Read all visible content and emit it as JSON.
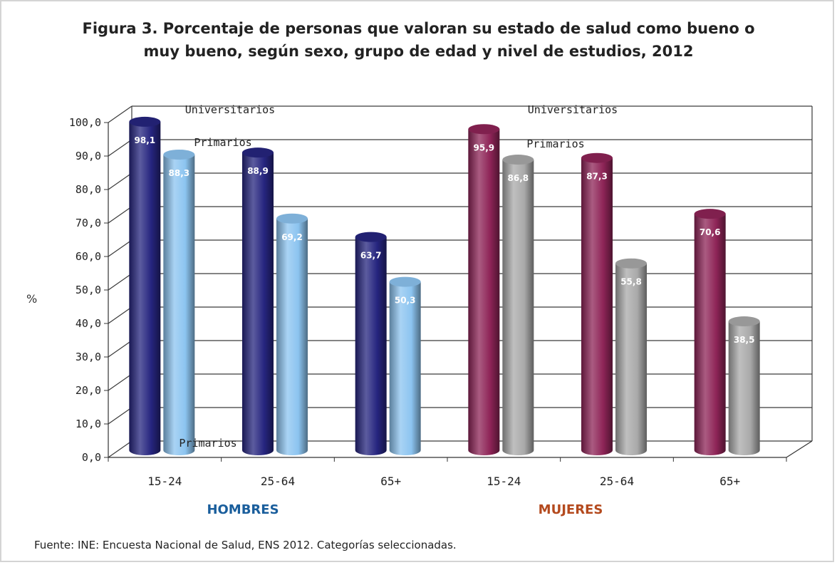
{
  "title_line1": "Figura 3. Porcentaje de personas que valoran su estado de salud como bueno o",
  "title_line2": "muy bueno, según sexo, grupo de edad y nivel de estudios, 2012",
  "ylabel": "%",
  "group_labels": [
    "HOMBRES",
    "MUJERES"
  ],
  "source": "Fuente:  INE: Encuesta Nacional de Salud, ENS 2012. Categorías seleccionadas.",
  "annotations": {
    "universitarios": "Universitarios",
    "primarios": "Primarios"
  },
  "colors": {
    "hombres_universitarios": "#26257f",
    "hombres_primarios": "#8cc4f0",
    "mujeres_universitarios": "#8e2457",
    "mujeres_primarios": "#a9a9a9",
    "grid": "#3a3a3a"
  },
  "chart_data": {
    "type": "bar",
    "title": "Figura 3. Porcentaje de personas que valoran su estado de salud como bueno o muy bueno, según sexo, grupo de edad y nivel de estudios, 2012",
    "xlabel": "",
    "ylabel": "%",
    "ylim": [
      0,
      100
    ],
    "yticks": [
      "0,0",
      "10,0",
      "20,0",
      "30,0",
      "40,0",
      "50,0",
      "60,0",
      "70,0",
      "80,0",
      "90,0",
      "100,0"
    ],
    "categories": [
      "15-24",
      "25-64",
      "65+",
      "15-24",
      "25-64",
      "65+"
    ],
    "groups": [
      "HOMBRES",
      "HOMBRES",
      "HOMBRES",
      "MUJERES",
      "MUJERES",
      "MUJERES"
    ],
    "grid": true,
    "series": [
      {
        "name": "Universitarios",
        "values": [
          98.1,
          88.9,
          63.7,
          95.9,
          87.3,
          70.6
        ],
        "labels": [
          "98,1",
          "88,9",
          "63,7",
          "95,9",
          "87,3",
          "70,6"
        ]
      },
      {
        "name": "Primarios",
        "values": [
          88.3,
          69.2,
          50.3,
          86.8,
          55.8,
          38.5
        ],
        "labels": [
          "88,3",
          "69,2",
          "50,3",
          "86,8",
          "55,8",
          "38,5"
        ]
      }
    ]
  }
}
